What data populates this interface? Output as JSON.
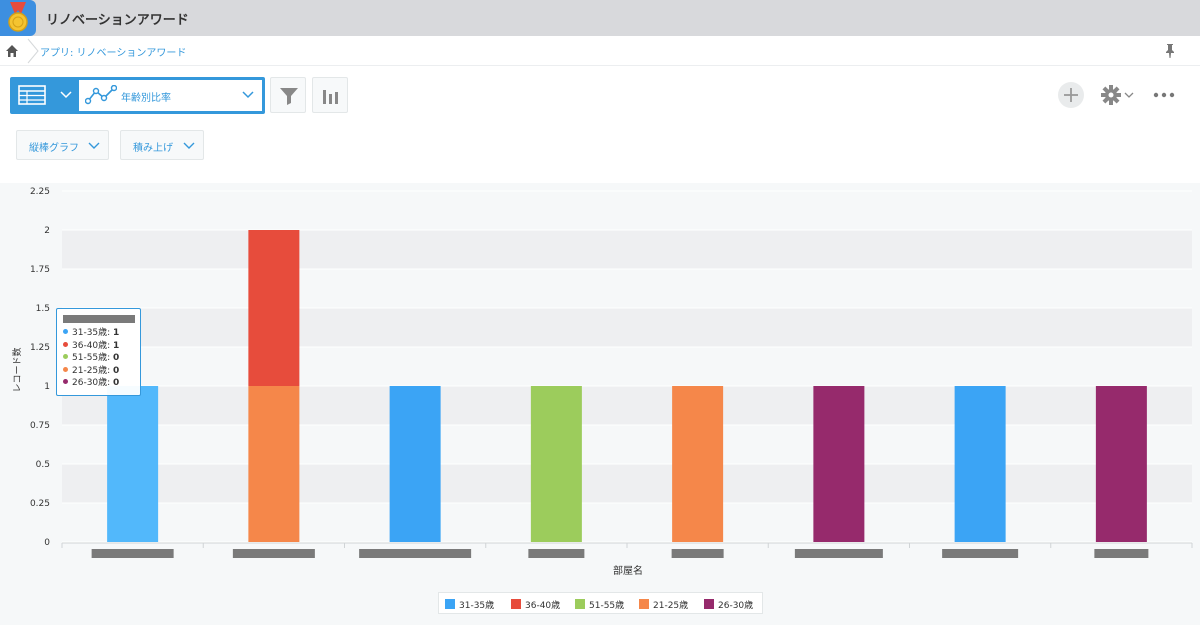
{
  "app": {
    "title": "リノベーションアワード"
  },
  "breadcrumb": {
    "text": "アプリ: リノベーションアワード"
  },
  "toolbar": {
    "graph_name": "年齢別比率"
  },
  "options": {
    "chart_type": "縦棒グラフ",
    "stack_mode": "積み上げ"
  },
  "colors": {
    "accent": "#3498db",
    "header_bg": "#d8d9dc",
    "plot_band": "#eeeff1"
  },
  "chart_data": {
    "type": "bar",
    "stacked": true,
    "ylabel": "レコード数",
    "xlabel": "部屋名",
    "ylim": [
      0,
      2.25
    ],
    "yticks": [
      "0",
      "0.25",
      "0.5",
      "0.75",
      "1",
      "1.25",
      "1.5",
      "1.75",
      "2",
      "2.25"
    ],
    "category_count": 8,
    "legend_position": "bottom-center",
    "grid": true,
    "series": [
      {
        "name": "31-35歳",
        "color": "#3ba4f5",
        "values": [
          1,
          0,
          1,
          0,
          0,
          0,
          1,
          0
        ]
      },
      {
        "name": "36-40歳",
        "color": "#e74c3c",
        "values": [
          0,
          1,
          0,
          0,
          0,
          0,
          0,
          0
        ]
      },
      {
        "name": "51-55歳",
        "color": "#9ccc5c",
        "values": [
          0,
          0,
          0,
          1,
          0,
          0,
          0,
          0
        ]
      },
      {
        "name": "21-25歳",
        "color": "#f5874a",
        "values": [
          0,
          1,
          0,
          0,
          1,
          0,
          0,
          0
        ]
      },
      {
        "name": "26-30歳",
        "color": "#962a6c",
        "values": [
          0,
          0,
          0,
          0,
          0,
          1,
          0,
          1
        ]
      }
    ],
    "tooltip": {
      "rows": [
        {
          "label": "31-35歳: ",
          "value": "1",
          "color": "#3ba4f5"
        },
        {
          "label": "36-40歳: ",
          "value": "1",
          "color": "#e74c3c"
        },
        {
          "label": "51-55歳: ",
          "value": "0",
          "color": "#9ccc5c"
        },
        {
          "label": "21-25歳: ",
          "value": "0",
          "color": "#f5874a"
        },
        {
          "label": "26-30歳: ",
          "value": "0",
          "color": "#962a6c"
        }
      ]
    }
  }
}
